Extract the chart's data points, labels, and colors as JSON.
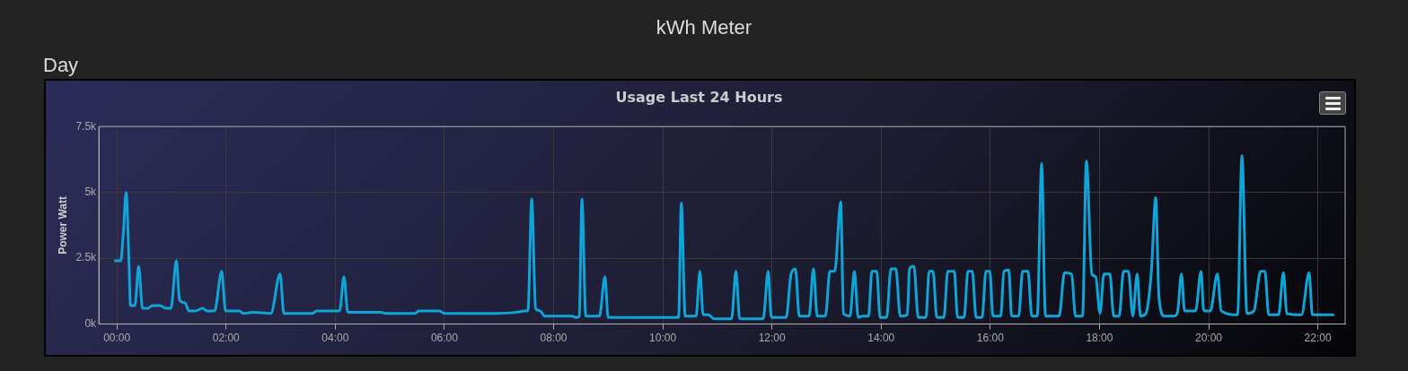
{
  "chart_data": {
    "type": "line",
    "title": "Usage Last 24 Hours",
    "ylabel": "Power Watt",
    "annotations": [
      "kWh Meter",
      "Day"
    ],
    "xlim": [
      -0.33,
      22.5
    ],
    "xticks": [
      {
        "value": 0,
        "label": "00:00"
      },
      {
        "value": 2,
        "label": "02:00"
      },
      {
        "value": 4,
        "label": "04:00"
      },
      {
        "value": 6,
        "label": "06:00"
      },
      {
        "value": 8,
        "label": "08:00"
      },
      {
        "value": 10,
        "label": "10:00"
      },
      {
        "value": 12,
        "label": "12:00"
      },
      {
        "value": 14,
        "label": "14:00"
      },
      {
        "value": 16,
        "label": "16:00"
      },
      {
        "value": 18,
        "label": "18:00"
      },
      {
        "value": 20,
        "label": "20:00"
      },
      {
        "value": 22,
        "label": "22:00"
      }
    ],
    "ylim": [
      0,
      7500
    ],
    "yticks": [
      {
        "value": 0,
        "label": "0k"
      },
      {
        "value": 2500,
        "label": "2.5k"
      },
      {
        "value": 5000,
        "label": "5k"
      },
      {
        "value": 7500,
        "label": "7.5k"
      }
    ],
    "grid": true,
    "legend": false,
    "marker": "none",
    "line_style": "solid",
    "series": [
      {
        "color": "#0ea5d8",
        "x": [
          -0.03,
          0.07,
          0.12,
          0.17,
          0.22,
          0.25,
          0.33,
          0.4,
          0.47,
          0.57,
          0.65,
          0.79,
          0.9,
          0.99,
          1.09,
          1.15,
          1.25,
          1.32,
          1.44,
          1.57,
          1.65,
          1.79,
          1.92,
          1.99,
          2.24,
          2.32,
          2.49,
          2.82,
          2.99,
          3.06,
          3.58,
          3.66,
          4.08,
          4.16,
          4.23,
          4.83,
          4.93,
          5.46,
          5.53,
          5.91,
          6.0,
          6.83,
          7.33,
          7.47,
          7.53,
          7.6,
          7.67,
          7.75,
          7.84,
          8.34,
          8.42,
          8.47,
          8.52,
          8.59,
          8.84,
          8.94,
          9.0,
          10.17,
          10.29,
          10.34,
          10.41,
          10.51,
          10.61,
          10.68,
          10.74,
          10.84,
          10.94,
          11.26,
          11.34,
          11.41,
          11.84,
          11.93,
          11.99,
          12.26,
          12.35,
          12.43,
          12.5,
          12.68,
          12.76,
          12.83,
          12.98,
          13.06,
          13.15,
          13.26,
          13.31,
          13.43,
          13.51,
          13.58,
          13.65,
          13.77,
          13.83,
          13.92,
          13.98,
          14.1,
          14.18,
          14.27,
          14.35,
          14.48,
          14.52,
          14.6,
          14.68,
          14.82,
          14.88,
          14.95,
          15.02,
          15.15,
          15.22,
          15.34,
          15.4,
          15.52,
          15.59,
          15.67,
          15.74,
          15.85,
          15.92,
          15.99,
          16.05,
          16.19,
          16.25,
          16.34,
          16.39,
          16.52,
          16.59,
          16.69,
          16.76,
          16.86,
          16.94,
          17.01,
          17.26,
          17.36,
          17.49,
          17.56,
          17.69,
          17.76,
          17.86,
          17.93,
          18.01,
          18.08,
          18.19,
          18.26,
          18.36,
          18.44,
          18.53,
          18.61,
          18.69,
          18.75,
          18.85,
          18.95,
          19.03,
          19.09,
          19.19,
          19.36,
          19.43,
          19.5,
          19.56,
          19.7,
          19.76,
          19.86,
          19.91,
          20.03,
          20.16,
          20.23,
          20.53,
          20.61,
          20.7,
          20.83,
          20.95,
          21.03,
          21.1,
          21.28,
          21.37,
          21.43,
          21.7,
          21.84,
          21.9,
          22.28
        ],
        "values": [
          2400,
          2400,
          3500,
          5000,
          2500,
          700,
          700,
          2200,
          600,
          600,
          700,
          700,
          600,
          600,
          2400,
          900,
          800,
          500,
          500,
          600,
          500,
          500,
          2000,
          500,
          500,
          400,
          450,
          400,
          1900,
          400,
          400,
          500,
          500,
          1800,
          450,
          450,
          400,
          400,
          500,
          500,
          400,
          400,
          450,
          500,
          500,
          4750,
          600,
          500,
          300,
          300,
          250,
          300,
          4750,
          300,
          300,
          1800,
          250,
          250,
          250,
          4600,
          300,
          300,
          300,
          2000,
          350,
          350,
          200,
          200,
          2000,
          200,
          200,
          2000,
          250,
          250,
          1900,
          2100,
          300,
          300,
          2100,
          300,
          300,
          2000,
          2000,
          4650,
          400,
          300,
          2000,
          250,
          300,
          300,
          2000,
          2000,
          250,
          250,
          2100,
          2100,
          300,
          350,
          2100,
          2200,
          250,
          250,
          2000,
          2000,
          250,
          250,
          2000,
          2000,
          250,
          250,
          2000,
          2000,
          250,
          250,
          2000,
          2000,
          300,
          300,
          2000,
          2050,
          300,
          300,
          2000,
          2000,
          300,
          300,
          6100,
          300,
          300,
          1950,
          1900,
          300,
          300,
          6200,
          1900,
          1800,
          400,
          1900,
          1900,
          300,
          300,
          2000,
          2000,
          300,
          1900,
          300,
          400,
          2000,
          4800,
          1000,
          300,
          300,
          450,
          1900,
          500,
          500,
          500,
          2000,
          500,
          500,
          1900,
          500,
          350,
          6400,
          400,
          500,
          2000,
          2000,
          350,
          350,
          1950,
          400,
          350,
          1950,
          350,
          350
        ]
      }
    ]
  }
}
